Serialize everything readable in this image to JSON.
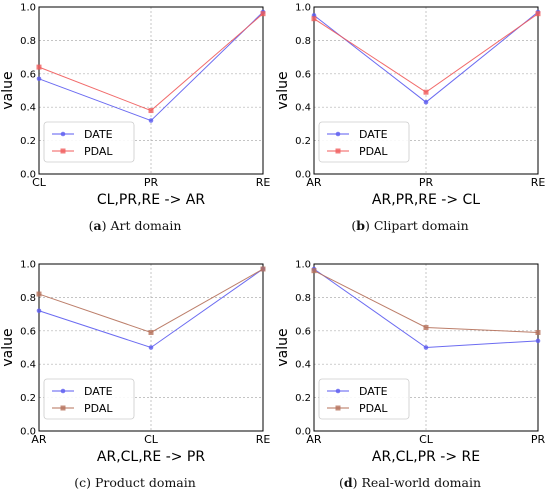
{
  "chart_data": [
    {
      "type": "line",
      "subfigure_label": "a",
      "caption": "Art domain",
      "xlabel": "CL,PR,RE -> AR",
      "ylabel": "value",
      "categories": [
        "CL",
        "PR",
        "RE"
      ],
      "ylim": [
        0.0,
        1.0
      ],
      "yticks": [
        "0.0",
        "0.2",
        "0.4",
        "0.6",
        "0.8",
        "1.0"
      ],
      "grid": true,
      "legend_position": "lower-left",
      "series": [
        {
          "name": "DATE",
          "values": [
            0.57,
            0.32,
            0.97
          ],
          "color": "#5b5bf0",
          "marker": "star"
        },
        {
          "name": "PDAL",
          "values": [
            0.64,
            0.38,
            0.96
          ],
          "color": "#f05b5b",
          "marker": "square"
        }
      ]
    },
    {
      "type": "line",
      "subfigure_label": "b",
      "caption": "Clipart domain",
      "xlabel": "AR,PR,RE -> CL",
      "ylabel": "value",
      "categories": [
        "AR",
        "PR",
        "RE"
      ],
      "ylim": [
        0.0,
        1.0
      ],
      "yticks": [
        "0.0",
        "0.2",
        "0.4",
        "0.6",
        "0.8",
        "1.0"
      ],
      "grid": true,
      "legend_position": "lower-left",
      "series": [
        {
          "name": "DATE",
          "values": [
            0.95,
            0.43,
            0.97
          ],
          "color": "#5b5bf0",
          "marker": "star"
        },
        {
          "name": "PDAL",
          "values": [
            0.93,
            0.49,
            0.96
          ],
          "color": "#f05b5b",
          "marker": "square"
        }
      ]
    },
    {
      "type": "line",
      "subfigure_label": "c",
      "caption": "Product domain",
      "xlabel": "AR,CL,RE -> PR",
      "ylabel": "value",
      "categories": [
        "AR",
        "CL",
        "RE"
      ],
      "ylim": [
        0.0,
        1.0
      ],
      "yticks": [
        "0.0",
        "0.2",
        "0.4",
        "0.6",
        "0.8",
        "1.0"
      ],
      "grid": true,
      "legend_position": "lower-left",
      "series": [
        {
          "name": "DATE",
          "values": [
            0.72,
            0.5,
            0.97
          ],
          "color": "#5b5bf0",
          "marker": "star"
        },
        {
          "name": "PDAL",
          "values": [
            0.82,
            0.59,
            0.97
          ],
          "color": "#b5705a",
          "marker": "square"
        }
      ]
    },
    {
      "type": "line",
      "subfigure_label": "d",
      "caption": "Real-world domain",
      "xlabel": "AR,CL,PR -> RE",
      "ylabel": "value",
      "categories": [
        "AR",
        "CL",
        "PR"
      ],
      "ylim": [
        0.0,
        1.0
      ],
      "yticks": [
        "0.0",
        "0.2",
        "0.4",
        "0.6",
        "0.8",
        "1.0"
      ],
      "grid": true,
      "legend_position": "lower-left",
      "series": [
        {
          "name": "DATE",
          "values": [
            0.97,
            0.5,
            0.54
          ],
          "color": "#5b5bf0",
          "marker": "star"
        },
        {
          "name": "PDAL",
          "values": [
            0.96,
            0.62,
            0.59
          ],
          "color": "#b5705a",
          "marker": "square"
        }
      ]
    }
  ]
}
